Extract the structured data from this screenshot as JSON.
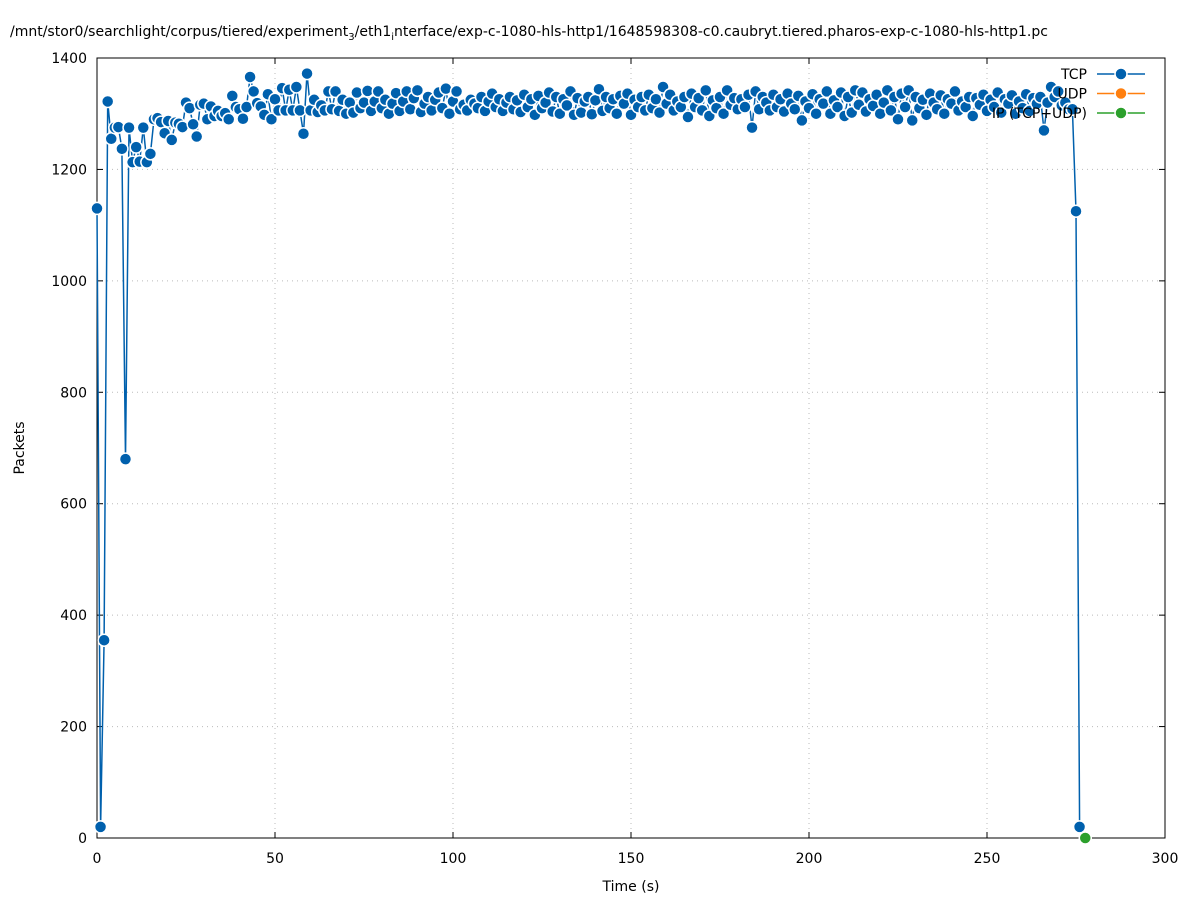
{
  "chart_data": {
    "type": "line",
    "title": [
      "/mnt/stor0/searchlight/corpus/tiered/experiment",
      "3",
      "/eth1",
      "i",
      "nterface/exp-c-1080-hls-http1/1648598308-c0.caubryt.tiered.pharos-exp-c-1080-hls-http1.pc"
    ],
    "xlabel": "Time (s)",
    "ylabel": "Packets",
    "xlim": [
      0,
      300
    ],
    "xticks": [
      0,
      50,
      100,
      150,
      200,
      250,
      300
    ],
    "ylim": [
      0,
      1400
    ],
    "yticks": [
      0,
      200,
      400,
      600,
      800,
      1000,
      1200,
      1400
    ],
    "grid": true,
    "legend": "top-right",
    "series": [
      {
        "name": "TCP",
        "color": "#0060ad",
        "x": [
          0,
          1,
          2,
          3,
          4,
          5,
          6,
          7,
          8,
          9,
          10,
          11,
          12,
          13,
          14,
          15,
          16,
          17,
          18,
          19,
          20,
          21,
          22,
          23,
          24,
          25,
          26,
          27,
          28,
          29,
          30,
          31,
          32,
          33,
          34,
          35,
          36,
          37,
          38,
          39,
          40,
          41,
          42,
          43,
          44,
          45,
          46,
          47,
          48,
          49,
          50,
          51,
          52,
          53,
          54,
          55,
          56,
          57,
          58,
          59,
          60,
          61,
          62,
          63,
          64,
          65,
          66,
          67,
          68,
          69,
          70,
          71,
          72,
          73,
          74,
          75,
          76,
          77,
          78,
          79,
          80,
          81,
          82,
          83,
          84,
          85,
          86,
          87,
          88,
          89,
          90,
          91,
          92,
          93,
          94,
          95,
          96,
          97,
          98,
          99,
          100,
          101,
          102,
          103,
          104,
          105,
          106,
          107,
          108,
          109,
          110,
          111,
          112,
          113,
          114,
          115,
          116,
          117,
          118,
          119,
          120,
          121,
          122,
          123,
          124,
          125,
          126,
          127,
          128,
          129,
          130,
          131,
          132,
          133,
          134,
          135,
          136,
          137,
          138,
          139,
          140,
          141,
          142,
          143,
          144,
          145,
          146,
          147,
          148,
          149,
          150,
          151,
          152,
          153,
          154,
          155,
          156,
          157,
          158,
          159,
          160,
          161,
          162,
          163,
          164,
          165,
          166,
          167,
          168,
          169,
          170,
          171,
          172,
          173,
          174,
          175,
          176,
          177,
          178,
          179,
          180,
          181,
          182,
          183,
          184,
          185,
          186,
          187,
          188,
          189,
          190,
          191,
          192,
          193,
          194,
          195,
          196,
          197,
          198,
          199,
          200,
          201,
          202,
          203,
          204,
          205,
          206,
          207,
          208,
          209,
          210,
          211,
          212,
          213,
          214,
          215,
          216,
          217,
          218,
          219,
          220,
          221,
          222,
          223,
          224,
          225,
          226,
          227,
          228,
          229,
          230,
          231,
          232,
          233,
          234,
          235,
          236,
          237,
          238,
          239,
          240,
          241,
          242,
          243,
          244,
          245,
          246,
          247,
          248,
          249,
          250,
          251,
          252,
          253,
          254,
          255,
          256,
          257,
          258,
          259,
          260,
          261,
          262,
          263,
          264,
          265,
          266,
          267,
          268,
          269,
          270,
          271,
          272,
          273,
          274,
          275,
          276
        ],
        "values": [
          1130,
          20,
          355,
          1322,
          1255,
          1275,
          1276,
          1237,
          680,
          1275,
          1213,
          1240,
          1214,
          1275,
          1213,
          1228,
          1290,
          1292,
          1285,
          1265,
          1287,
          1253,
          1284,
          1282,
          1276,
          1320,
          1310,
          1281,
          1259,
          1316,
          1318,
          1290,
          1313,
          1296,
          1305,
          1296,
          1301,
          1290,
          1332,
          1312,
          1308,
          1291,
          1312,
          1366,
          1340,
          1319,
          1313,
          1298,
          1335,
          1290,
          1326,
          1306,
          1346,
          1306,
          1343,
          1306,
          1348,
          1306,
          1264,
          1372,
          1306,
          1325,
          1303,
          1315,
          1306,
          1340,
          1308,
          1340,
          1305,
          1325,
          1300,
          1320,
          1302,
          1338,
          1310,
          1320,
          1341,
          1305,
          1322,
          1340,
          1310,
          1325,
          1300,
          1318,
          1337,
          1305,
          1322,
          1340,
          1308,
          1328,
          1342,
          1303,
          1318,
          1330,
          1306,
          1325,
          1338,
          1310,
          1345,
          1300,
          1322,
          1340,
          1308,
          1316,
          1306,
          1325,
          1318,
          1310,
          1330,
          1305,
          1322,
          1336,
          1312,
          1326,
          1305,
          1320,
          1330,
          1308,
          1324,
          1303,
          1334,
          1312,
          1326,
          1298,
          1332,
          1310,
          1320,
          1338,
          1304,
          1330,
          1300,
          1326,
          1315,
          1340,
          1298,
          1328,
          1302,
          1322,
          1330,
          1299,
          1324,
          1344,
          1305,
          1330,
          1310,
          1326,
          1300,
          1332,
          1318,
          1336,
          1298,
          1325,
          1312,
          1330,
          1306,
          1334,
          1310,
          1326,
          1302,
          1348,
          1318,
          1334,
          1306,
          1322,
          1312,
          1330,
          1294,
          1336,
          1312,
          1328,
          1306,
          1342,
          1296,
          1324,
          1310,
          1330,
          1300,
          1342,
          1316,
          1328,
          1308,
          1326,
          1312,
          1334,
          1275,
          1340,
          1308,
          1330,
          1320,
          1306,
          1334,
          1312,
          1326,
          1304,
          1336,
          1318,
          1308,
          1332,
          1288,
          1322,
          1310,
          1335,
          1300,
          1326,
          1318,
          1340,
          1300,
          1324,
          1312,
          1338,
          1296,
          1330,
          1302,
          1342,
          1316,
          1338,
          1304,
          1326,
          1314,
          1334,
          1300,
          1320,
          1342,
          1306,
          1330,
          1290,
          1336,
          1312,
          1342,
          1288,
          1330,
          1310,
          1325,
          1298,
          1336,
          1320,
          1308,
          1333,
          1300,
          1326,
          1318,
          1340,
          1306,
          1322,
          1312,
          1330,
          1296,
          1328,
          1316,
          1334,
          1305,
          1325,
          1312,
          1338,
          1302,
          1326,
          1318,
          1333,
          1300,
          1322,
          1310,
          1335,
          1305,
          1328,
          1318,
          1330,
          1270,
          1320,
          1348,
          1330,
          1340,
          1315,
          1320,
          1308,
          1308,
          1125,
          20
        ]
      },
      {
        "name": "UDP",
        "color": "#ff7f0e",
        "x": [],
        "values": []
      },
      {
        "name": "IP (TCP+UDP)",
        "color": "#2ca02c",
        "x": [
          277.6
        ],
        "values": [
          0
        ]
      }
    ]
  }
}
